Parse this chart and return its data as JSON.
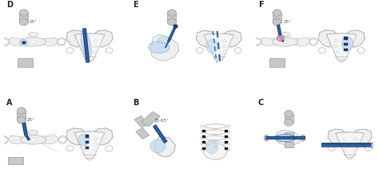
{
  "panels": [
    "A",
    "B",
    "C",
    "D",
    "E",
    "F"
  ],
  "bg": "#ffffff",
  "bone_fc": "#efefef",
  "bone_ec": "#b0b0b0",
  "bone_ec2": "#c8c8c8",
  "blue_dark": "#1a3a6e",
  "blue_mid": "#3060a0",
  "blue_light": "#7aaad0",
  "blue_fill": "#c0d8ee",
  "blue_cement": "#90b8d8",
  "gray_dev": "#c8c8c8",
  "gray_dev_ec": "#999999",
  "needle_dark": "#1a3a6e",
  "angle_A": "25°",
  "angle_B": "35-65°",
  "angle_F": "25°",
  "figsize": [
    4.74,
    2.46
  ],
  "dpi": 100
}
